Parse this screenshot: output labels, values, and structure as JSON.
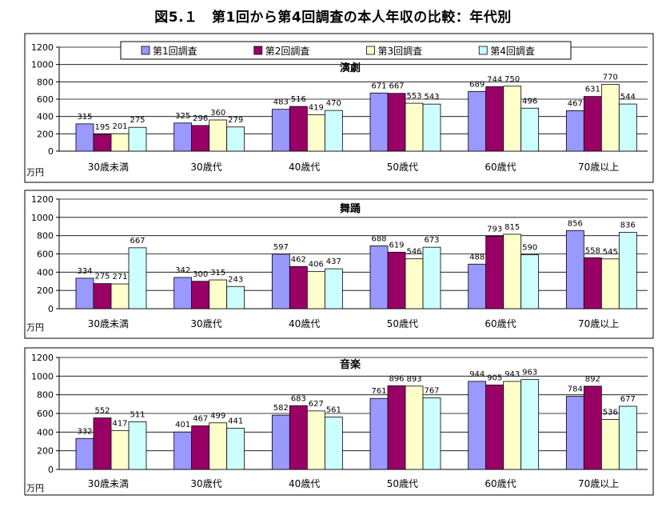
{
  "title": "図5.１　第1回から第4回調査の本人年収の比較：年代別",
  "chart_data": [
    {
      "type": "bar",
      "title": "演劇",
      "unit": "万円",
      "categories": [
        "30歳未満",
        "30歳代",
        "40歳代",
        "50歳代",
        "60歳代",
        "70歳以上"
      ],
      "yticks": [
        "0",
        "200",
        "400",
        "600",
        "800",
        "1000",
        "1200"
      ],
      "ylim": [
        0,
        1200
      ],
      "series": [
        {
          "name": "第1回調査",
          "values": [
            315,
            325,
            483,
            671,
            689,
            467
          ]
        },
        {
          "name": "第2回調査",
          "values": [
            195,
            296,
            516,
            667,
            744,
            631
          ]
        },
        {
          "name": "第3回調査",
          "values": [
            201,
            360,
            419,
            553,
            750,
            770
          ]
        },
        {
          "name": "第4回調査",
          "values": [
            275,
            279,
            470,
            543,
            496,
            544
          ]
        }
      ]
    },
    {
      "type": "bar",
      "title": "舞踊",
      "unit": "万円",
      "categories": [
        "30歳未満",
        "30歳代",
        "40歳代",
        "50歳代",
        "60歳代",
        "70歳以上"
      ],
      "yticks": [
        "0",
        "200",
        "400",
        "600",
        "800",
        "1000",
        "1200"
      ],
      "ylim": [
        0,
        1200
      ],
      "series": [
        {
          "name": "第1回調査",
          "values": [
            334,
            342,
            597,
            688,
            488,
            856
          ]
        },
        {
          "name": "第2回調査",
          "values": [
            275,
            300,
            462,
            619,
            793,
            558
          ]
        },
        {
          "name": "第3回調査",
          "values": [
            271,
            315,
            406,
            546,
            815,
            545
          ]
        },
        {
          "name": "第4回調査",
          "values": [
            667,
            243,
            437,
            673,
            590,
            836
          ]
        }
      ]
    },
    {
      "type": "bar",
      "title": "音楽",
      "unit": "万円",
      "categories": [
        "30歳未満",
        "30歳代",
        "40歳代",
        "50歳代",
        "60歳代",
        "70歳以上"
      ],
      "yticks": [
        "0",
        "200",
        "400",
        "600",
        "800",
        "1000",
        "1200"
      ],
      "ylim": [
        0,
        1200
      ],
      "series": [
        {
          "name": "第1回調査",
          "values": [
            332,
            401,
            582,
            761,
            944,
            784
          ]
        },
        {
          "name": "第2回調査",
          "values": [
            552,
            467,
            683,
            896,
            905,
            892
          ]
        },
        {
          "name": "第3回調査",
          "values": [
            417,
            499,
            627,
            893,
            943,
            536
          ]
        },
        {
          "name": "第4回調査",
          "values": [
            511,
            441,
            561,
            767,
            963,
            677
          ]
        }
      ]
    }
  ],
  "legend": {
    "placement": "top-center",
    "items": [
      "第1回調査",
      "第2回調査",
      "第3回調査",
      "第4回調査"
    ]
  },
  "colors": [
    "#9999ff",
    "#990066",
    "#ffffcc",
    "#ccffff"
  ]
}
